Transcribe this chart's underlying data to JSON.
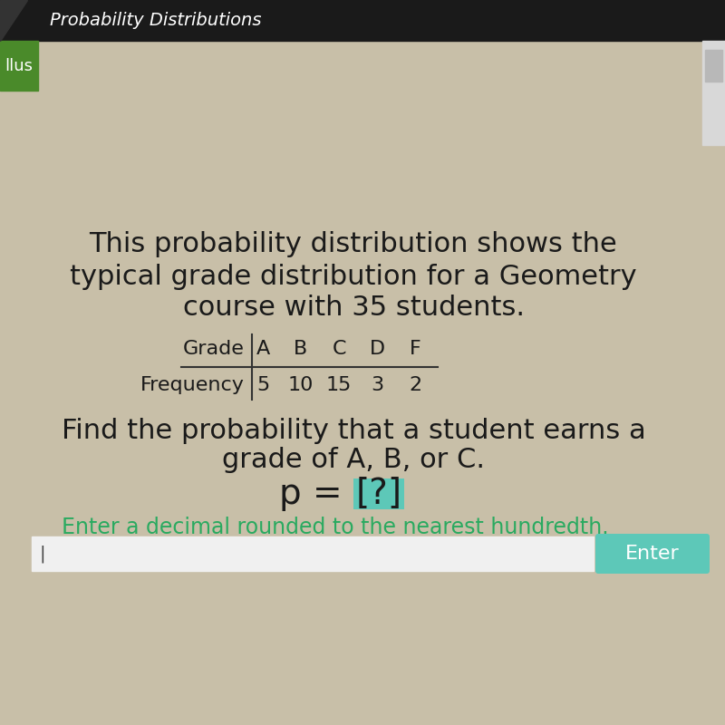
{
  "header_text": "Probability Distributions",
  "header_bg": "#1a1a1a",
  "header_text_color": "#ffffff",
  "sidebar_color": "#4a8a2a",
  "sidebar_text": "llus",
  "bg_color": "#c8bfa8",
  "main_text_line1": "This probability distribution shows the",
  "main_text_line2": "typical grade distribution for a Geometry",
  "main_text_line3": "course with 35 students.",
  "table_grades": [
    "A",
    "B",
    "C",
    "D",
    "F"
  ],
  "table_freq": [
    "5",
    "10",
    "15",
    "3",
    "2"
  ],
  "row_labels": [
    "Grade",
    "Frequency"
  ],
  "question_line1": "Find the probability that a student earns a",
  "question_line2": "grade of A, B, or C.",
  "bracket_bg": "#5dc8b8",
  "hint_text": "Enter a decimal rounded to the nearest hundredth.",
  "hint_color": "#2aaa60",
  "input_box_color": "#f0f0f0",
  "enter_btn_color": "#5dc8b8",
  "enter_btn_text": "Enter",
  "main_text_color": "#1a1a1a",
  "table_text_color": "#1a1a1a",
  "main_fontsize": 22,
  "question_fontsize": 22,
  "p_fontsize": 28,
  "hint_fontsize": 17,
  "header_fontsize": 14,
  "table_fontsize": 16
}
